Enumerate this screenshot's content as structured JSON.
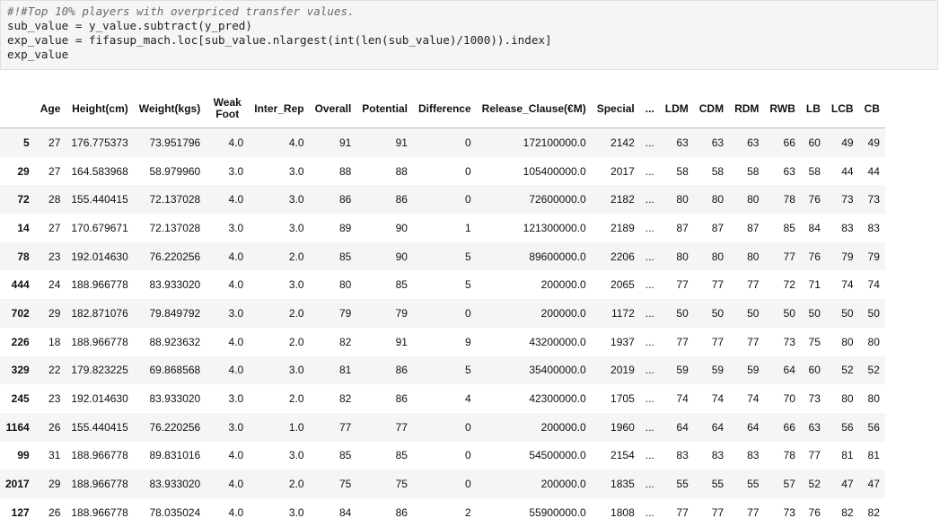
{
  "code": {
    "lines": [
      "#!#Top 10% players with overpriced transfer values.",
      "sub_value = y_value.subtract(y_pred)",
      "exp_value = fifasup_mach.loc[sub_value.nlargest(int(len(sub_value)/1000)).index]",
      "exp_value"
    ]
  },
  "table": {
    "columns": [
      "",
      "Age",
      "Height(cm)",
      "Weight(kgs)",
      "Weak Foot",
      "Inter_Rep",
      "Overall",
      "Potential",
      "Difference",
      "Release_Clause(€M)",
      "Special",
      "...",
      "LDM",
      "CDM",
      "RDM",
      "RWB",
      "LB",
      "LCB",
      "CB"
    ],
    "rows": [
      [
        "5",
        "27",
        "176.775373",
        "73.951796",
        "4.0",
        "4.0",
        "91",
        "91",
        "0",
        "172100000.0",
        "2142",
        "...",
        "63",
        "63",
        "63",
        "66",
        "60",
        "49",
        "49"
      ],
      [
        "29",
        "27",
        "164.583968",
        "58.979960",
        "3.0",
        "3.0",
        "88",
        "88",
        "0",
        "105400000.0",
        "2017",
        "...",
        "58",
        "58",
        "58",
        "63",
        "58",
        "44",
        "44"
      ],
      [
        "72",
        "28",
        "155.440415",
        "72.137028",
        "4.0",
        "3.0",
        "86",
        "86",
        "0",
        "72600000.0",
        "2182",
        "...",
        "80",
        "80",
        "80",
        "78",
        "76",
        "73",
        "73"
      ],
      [
        "14",
        "27",
        "170.679671",
        "72.137028",
        "3.0",
        "3.0",
        "89",
        "90",
        "1",
        "121300000.0",
        "2189",
        "...",
        "87",
        "87",
        "87",
        "85",
        "84",
        "83",
        "83"
      ],
      [
        "78",
        "23",
        "192.014630",
        "76.220256",
        "4.0",
        "2.0",
        "85",
        "90",
        "5",
        "89600000.0",
        "2206",
        "...",
        "80",
        "80",
        "80",
        "77",
        "76",
        "79",
        "79"
      ],
      [
        "444",
        "24",
        "188.966778",
        "83.933020",
        "4.0",
        "3.0",
        "80",
        "85",
        "5",
        "200000.0",
        "2065",
        "...",
        "77",
        "77",
        "77",
        "72",
        "71",
        "74",
        "74"
      ],
      [
        "702",
        "29",
        "182.871076",
        "79.849792",
        "3.0",
        "2.0",
        "79",
        "79",
        "0",
        "200000.0",
        "1172",
        "...",
        "50",
        "50",
        "50",
        "50",
        "50",
        "50",
        "50"
      ],
      [
        "226",
        "18",
        "188.966778",
        "88.923632",
        "4.0",
        "2.0",
        "82",
        "91",
        "9",
        "43200000.0",
        "1937",
        "...",
        "77",
        "77",
        "77",
        "73",
        "75",
        "80",
        "80"
      ],
      [
        "329",
        "22",
        "179.823225",
        "69.868568",
        "4.0",
        "3.0",
        "81",
        "86",
        "5",
        "35400000.0",
        "2019",
        "...",
        "59",
        "59",
        "59",
        "64",
        "60",
        "52",
        "52"
      ],
      [
        "245",
        "23",
        "192.014630",
        "83.933020",
        "3.0",
        "2.0",
        "82",
        "86",
        "4",
        "42300000.0",
        "1705",
        "...",
        "74",
        "74",
        "74",
        "70",
        "73",
        "80",
        "80"
      ],
      [
        "1164",
        "26",
        "155.440415",
        "76.220256",
        "3.0",
        "1.0",
        "77",
        "77",
        "0",
        "200000.0",
        "1960",
        "...",
        "64",
        "64",
        "64",
        "66",
        "63",
        "56",
        "56"
      ],
      [
        "99",
        "31",
        "188.966778",
        "89.831016",
        "4.0",
        "3.0",
        "85",
        "85",
        "0",
        "54500000.0",
        "2154",
        "...",
        "83",
        "83",
        "83",
        "78",
        "77",
        "81",
        "81"
      ],
      [
        "2017",
        "29",
        "188.966778",
        "83.933020",
        "4.0",
        "2.0",
        "75",
        "75",
        "0",
        "200000.0",
        "1835",
        "...",
        "55",
        "55",
        "55",
        "57",
        "52",
        "47",
        "47"
      ],
      [
        "127",
        "26",
        "188.966778",
        "78.035024",
        "4.0",
        "3.0",
        "84",
        "86",
        "2",
        "55900000.0",
        "1808",
        "...",
        "77",
        "77",
        "77",
        "73",
        "76",
        "82",
        "82"
      ]
    ]
  }
}
